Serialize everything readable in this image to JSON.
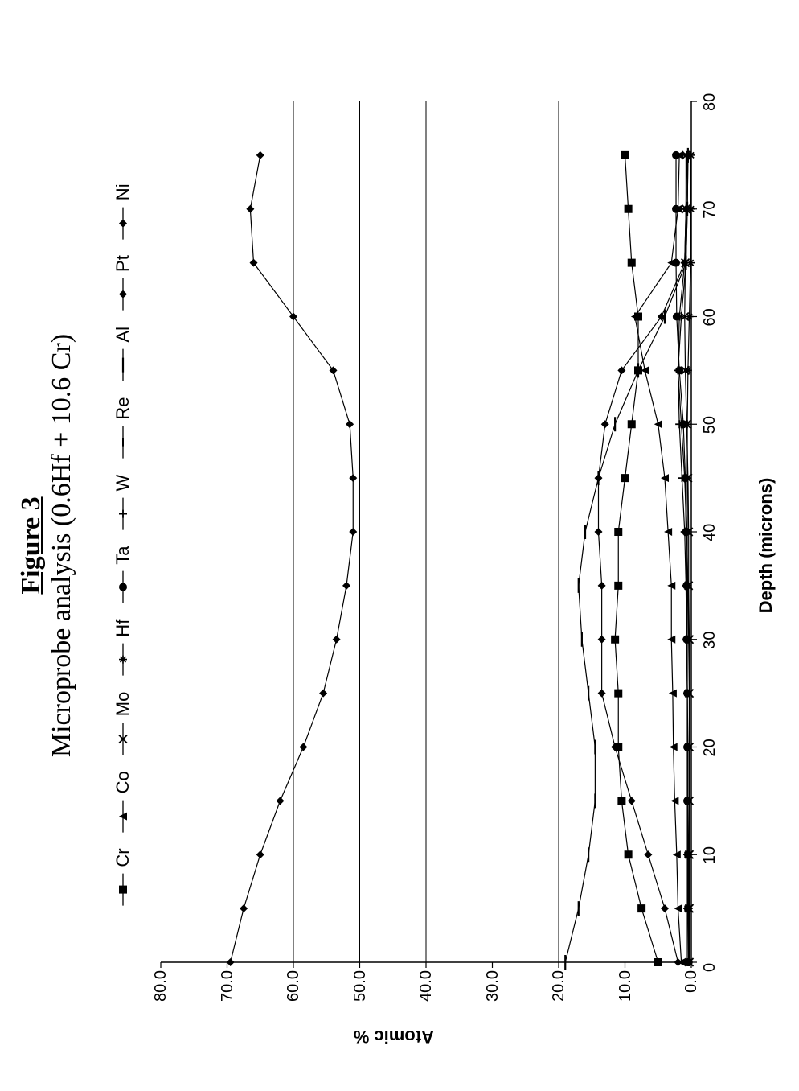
{
  "figure": {
    "label": "Figure 3",
    "subtitle": "Microprobe analysis (0.6Hf + 10.6 Cr)",
    "label_fontsize": 34,
    "subtitle_fontsize": 34,
    "font_family_title": "Times New Roman"
  },
  "chart": {
    "type": "line",
    "background_color": "#ffffff",
    "axis_color": "#000000",
    "grid_color": "#000000",
    "line_width_series": 1.2,
    "line_width_axes": 1.5,
    "x_axis": {
      "title": "Depth (microns)",
      "title_fontsize": 22,
      "title_fontweight": "bold",
      "font_family": "Arial",
      "min": 0,
      "max": 80,
      "tick_step": 10,
      "ticks": [
        0,
        10,
        20,
        30,
        40,
        50,
        60,
        70,
        80
      ]
    },
    "y_axis": {
      "title": "Atomic %",
      "title_fontsize": 22,
      "title_fontweight": "bold",
      "font_family": "Arial",
      "min": 0,
      "max": 80,
      "tick_step": 10,
      "tick_format": "0.0",
      "ticks": [
        0.0,
        10.0,
        20.0,
        30.0,
        40.0,
        50.0,
        60.0,
        70.0,
        80.0
      ],
      "grid_lines_at": [
        20.0,
        40.0,
        50.0,
        60.0,
        70.0
      ]
    },
    "legend": {
      "position": "top-center",
      "fontsize": 22,
      "font_family": "Arial",
      "border_top": true,
      "border_bottom": true,
      "items": [
        {
          "key": "Cr",
          "label": "Cr",
          "marker": "filled-square",
          "color": "#000000"
        },
        {
          "key": "Co",
          "label": "Co",
          "marker": "filled-triangle",
          "color": "#000000"
        },
        {
          "key": "Mo",
          "label": "Mo",
          "marker": "x",
          "color": "#000000"
        },
        {
          "key": "Hf",
          "label": "Hf",
          "marker": "asterisk",
          "color": "#000000"
        },
        {
          "key": "Ta",
          "label": "Ta",
          "marker": "filled-circle",
          "color": "#000000"
        },
        {
          "key": "W",
          "label": "W",
          "marker": "plus",
          "color": "#000000"
        },
        {
          "key": "Re",
          "label": "Re",
          "marker": "dash",
          "color": "#000000"
        },
        {
          "key": "Al",
          "label": "Al",
          "marker": "long-dash",
          "color": "#000000"
        },
        {
          "key": "Pt",
          "label": "Pt",
          "marker": "filled-diamond",
          "color": "#000000"
        },
        {
          "key": "Ni",
          "label": "Ni",
          "marker": "filled-diamond",
          "color": "#000000"
        }
      ]
    },
    "x_values": [
      0,
      5,
      10,
      15,
      20,
      25,
      30,
      35,
      40,
      45,
      50,
      55,
      60,
      65,
      70,
      75
    ],
    "series": {
      "Ni": {
        "marker": "filled-diamond",
        "color": "#000000",
        "values": [
          69.5,
          67.5,
          65.0,
          62.0,
          58.5,
          55.5,
          53.5,
          52.0,
          51.0,
          51.0,
          51.5,
          54.0,
          60.0,
          66.0,
          66.5,
          65.0
        ]
      },
      "Al": {
        "marker": "long-dash",
        "color": "#000000",
        "values": [
          19.0,
          17.0,
          15.5,
          14.5,
          14.5,
          15.5,
          16.5,
          17.0,
          16.0,
          14.0,
          11.5,
          8.0,
          4.0,
          0.8,
          0.6,
          0.5
        ]
      },
      "Cr": {
        "marker": "filled-square",
        "color": "#000000",
        "values": [
          5.0,
          7.5,
          9.5,
          10.5,
          11.0,
          11.0,
          11.5,
          11.0,
          11.0,
          10.0,
          9.0,
          8.0,
          8.0,
          9.0,
          9.5,
          10.0
        ]
      },
      "Pt": {
        "marker": "filled-diamond",
        "color": "#000000",
        "values": [
          2.0,
          4.0,
          6.5,
          9.0,
          11.5,
          13.5,
          13.5,
          13.5,
          14.0,
          14.0,
          13.0,
          10.5,
          4.5,
          1.0,
          0.8,
          0.6
        ]
      },
      "Co": {
        "marker": "filled-triangle",
        "color": "#000000",
        "values": [
          1.5,
          2.0,
          2.2,
          2.5,
          2.7,
          2.8,
          3.0,
          3.0,
          3.5,
          4.0,
          5.0,
          7.0,
          8.5,
          3.0,
          2.0,
          1.8
        ]
      },
      "Ta": {
        "marker": "filled-circle",
        "color": "#000000",
        "values": [
          0.4,
          0.5,
          0.5,
          0.6,
          0.6,
          0.6,
          0.7,
          0.7,
          0.8,
          0.9,
          1.2,
          1.8,
          2.2,
          2.3,
          2.3,
          2.3
        ]
      },
      "Mo": {
        "marker": "x",
        "color": "#000000",
        "values": [
          0.3,
          0.3,
          0.3,
          0.3,
          0.3,
          0.3,
          0.3,
          0.4,
          0.4,
          0.5,
          0.7,
          0.9,
          1.0,
          0.9,
          0.8,
          0.8
        ]
      },
      "W": {
        "marker": "plus",
        "color": "#000000",
        "values": [
          0.4,
          0.4,
          0.4,
          0.5,
          0.5,
          0.6,
          0.7,
          0.8,
          1.0,
          1.4,
          1.8,
          2.0,
          1.8,
          1.0,
          0.8,
          0.7
        ]
      },
      "Re": {
        "marker": "dash",
        "color": "#000000",
        "values": [
          0.3,
          0.3,
          0.3,
          0.3,
          0.3,
          0.3,
          0.4,
          0.5,
          0.7,
          1.0,
          1.5,
          2.0,
          1.5,
          0.8,
          0.6,
          0.5
        ]
      },
      "Hf": {
        "marker": "asterisk",
        "color": "#000000",
        "values": [
          0.6,
          0.6,
          0.6,
          0.6,
          0.6,
          0.6,
          0.6,
          0.6,
          0.6,
          0.6,
          0.6,
          0.5,
          0.3,
          0.1,
          0.05,
          0.05
        ]
      }
    },
    "marker_size": 10
  }
}
